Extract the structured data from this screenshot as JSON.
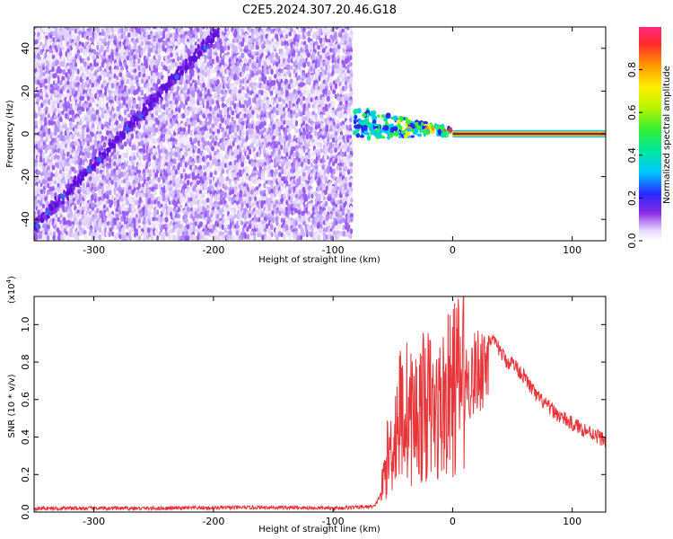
{
  "page_title": "C2E5.2024.307.20.46.G18",
  "chart_data": [
    {
      "type": "heatmap",
      "name": "spectrogram",
      "xlabel": "Height of straight line (km)",
      "ylabel": "Frequency (Hz)",
      "xlim": [
        -350,
        128
      ],
      "ylim": [
        -50,
        50
      ],
      "xticks": [
        -300,
        -200,
        -100,
        0,
        100
      ],
      "xtick_labels": [
        "-300",
        "-200",
        "-100",
        "0",
        "100"
      ],
      "yticks": [
        -40,
        -20,
        0,
        20,
        40
      ],
      "ytick_labels": [
        "-40",
        "-20",
        "0",
        "20",
        "40"
      ],
      "noise_region_x": [
        -350,
        -83
      ],
      "diagonal_trace": {
        "x": [
          -350,
          -195
        ],
        "y": [
          -44,
          48
        ]
      },
      "dispersed_segment": {
        "x": [
          -83,
          0
        ],
        "y": [
          -3,
          9
        ]
      },
      "signal_line": {
        "x": [
          0,
          128
        ],
        "y": 0,
        "amplitude": 0.9
      },
      "colorbar": {
        "label": "Normalized spectral amplitude",
        "range": [
          0,
          1
        ],
        "ticks": [
          0.0,
          0.2,
          0.4,
          0.6,
          0.8
        ],
        "tick_labels": [
          "0.0",
          "0.2",
          "0.4",
          "0.6",
          "0.8"
        ]
      }
    },
    {
      "type": "line",
      "name": "snr",
      "xlabel": "Height of straight line (km)",
      "ylabel": "SNR (10 * v/v)",
      "scale_note": "(x10",
      "scale_exp": "4",
      "scale_close": ")",
      "xlim": [
        -350,
        128
      ],
      "ylim": [
        0,
        1.15
      ],
      "xticks": [
        -300,
        -200,
        -100,
        0,
        100
      ],
      "xtick_labels": [
        "-300",
        "-200",
        "-100",
        "0",
        "100"
      ],
      "yticks": [
        0.0,
        0.2,
        0.4,
        0.6,
        0.8,
        1.0
      ],
      "ytick_labels": [
        "0.0",
        "0.2",
        "0.4",
        "0.6",
        "0.8",
        "1.0"
      ],
      "color": "#e8353a",
      "envelope": {
        "x": [
          -350,
          -250,
          -150,
          -100,
          -65,
          -60,
          -55,
          -50,
          -45,
          -40,
          -35,
          -30,
          -25,
          -20,
          -15,
          -10,
          -5,
          0,
          5,
          10,
          15,
          20,
          25,
          30,
          35,
          40,
          45,
          50,
          55,
          60,
          70,
          80,
          90,
          100,
          110,
          120,
          128
        ],
        "y": [
          0.02,
          0.02,
          0.025,
          0.02,
          0.03,
          0.1,
          0.3,
          0.4,
          0.55,
          0.6,
          0.55,
          0.55,
          0.6,
          0.62,
          0.55,
          0.6,
          0.65,
          0.7,
          0.75,
          0.8,
          0.8,
          0.85,
          0.9,
          0.93,
          0.9,
          0.86,
          0.8,
          0.8,
          0.76,
          0.72,
          0.62,
          0.56,
          0.51,
          0.47,
          0.44,
          0.41,
          0.38
        ]
      }
    }
  ]
}
